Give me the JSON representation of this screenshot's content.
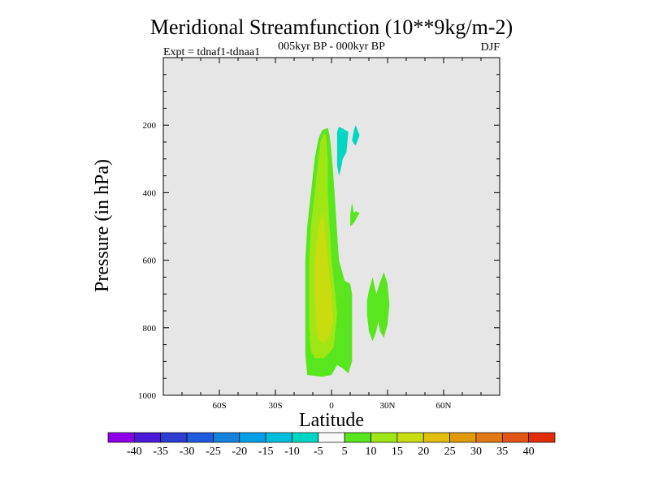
{
  "chart_data": {
    "type": "contour",
    "title": "Meridional Streamfunction (10**9kg/m-2)",
    "subtitle": "005kyr BP - 000kyr BP",
    "left_annotation": "Expt = tdnaf1-tdnaa1",
    "right_annotation": "DJF",
    "xlabel": "Latitude",
    "ylabel": "Pressure (in hPa)",
    "xlim": [
      -90,
      90
    ],
    "ylim": [
      1000,
      0
    ],
    "x_ticks": [
      {
        "value": -60,
        "label": "60S"
      },
      {
        "value": -30,
        "label": "30S"
      },
      {
        "value": 0,
        "label": "0"
      },
      {
        "value": 30,
        "label": "30N"
      },
      {
        "value": 60,
        "label": "60N"
      }
    ],
    "y_ticks": [
      {
        "value": 200,
        "label": "200"
      },
      {
        "value": 400,
        "label": "400"
      },
      {
        "value": 600,
        "label": "600"
      },
      {
        "value": 800,
        "label": "800"
      },
      {
        "value": 1000,
        "label": "1000"
      }
    ],
    "background_color": "#e6e6e6",
    "colorbar": {
      "levels": [
        "-40",
        "-35",
        "-30",
        "-25",
        "-20",
        "-15",
        "-10",
        "-5",
        "5",
        "10",
        "15",
        "20",
        "25",
        "30",
        "35",
        "40"
      ],
      "colors": [
        "#8c00e6",
        "#4b19d7",
        "#2d3cd2",
        "#1e5adc",
        "#1482dc",
        "#00a0e6",
        "#00bedc",
        "#00d7c3",
        "#fafafa",
        "#5ae61e",
        "#a0e614",
        "#c8dc0f",
        "#e1be0a",
        "#e19b0a",
        "#e17814",
        "#e15514",
        "#e12d0a"
      ]
    },
    "contours": [
      {
        "value_range": "5 to 10",
        "color": "#5ae61e",
        "points": [
          [
            -13,
            940
          ],
          [
            -14,
            880
          ],
          [
            -14,
            800
          ],
          [
            -14,
            700
          ],
          [
            -14,
            600
          ],
          [
            -13,
            500
          ],
          [
            -11,
            400
          ],
          [
            -9,
            300
          ],
          [
            -7,
            240
          ],
          [
            -5,
            215
          ],
          [
            -2,
            208
          ],
          [
            -1,
            230
          ],
          [
            0,
            280
          ],
          [
            1,
            350
          ],
          [
            2,
            430
          ],
          [
            3,
            520
          ],
          [
            4,
            600
          ],
          [
            7,
            660
          ],
          [
            10,
            670
          ],
          [
            11,
            700
          ],
          [
            11,
            900
          ],
          [
            9,
            935
          ],
          [
            6,
            920
          ],
          [
            3,
            910
          ],
          [
            0,
            940
          ],
          [
            -5,
            945
          ]
        ]
      },
      {
        "value_range": "10 to 15",
        "color": "#a0e614",
        "points": [
          [
            -11,
            870
          ],
          [
            -12,
            800
          ],
          [
            -12,
            700
          ],
          [
            -12,
            600
          ],
          [
            -11,
            500
          ],
          [
            -9,
            400
          ],
          [
            -7,
            300
          ],
          [
            -6,
            250
          ],
          [
            -4,
            225
          ],
          [
            -3,
            230
          ],
          [
            -2,
            300
          ],
          [
            -2,
            400
          ],
          [
            -1,
            500
          ],
          [
            0,
            600
          ],
          [
            2,
            700
          ],
          [
            3,
            760
          ],
          [
            1,
            860
          ],
          [
            -4,
            890
          ],
          [
            -9,
            890
          ]
        ]
      },
      {
        "value_range": "15 to 20",
        "color": "#c8dc0f",
        "points": [
          [
            -8,
            800
          ],
          [
            -9,
            700
          ],
          [
            -9,
            600
          ],
          [
            -7,
            500
          ],
          [
            -5,
            460
          ],
          [
            -4,
            480
          ],
          [
            -3,
            550
          ],
          [
            -1,
            650
          ],
          [
            0,
            700
          ],
          [
            1,
            780
          ],
          [
            -1,
            820
          ],
          [
            -4,
            850
          ],
          [
            -7,
            830
          ]
        ]
      },
      {
        "value_range": "5 to 10",
        "color": "#5ae61e",
        "points": [
          [
            10,
            465
          ],
          [
            11,
            430
          ],
          [
            12,
            460
          ],
          [
            13,
            455
          ],
          [
            15,
            460
          ],
          [
            14,
            470
          ],
          [
            12,
            490
          ],
          [
            10,
            500
          ]
        ]
      },
      {
        "value_range": "5 to 10",
        "color": "#5ae61e",
        "points": [
          [
            20,
            690
          ],
          [
            22,
            650
          ],
          [
            24,
            700
          ],
          [
            26,
            665
          ],
          [
            28,
            635
          ],
          [
            30,
            670
          ],
          [
            31,
            730
          ],
          [
            30,
            790
          ],
          [
            28,
            830
          ],
          [
            26,
            810
          ],
          [
            25,
            780
          ],
          [
            24,
            810
          ],
          [
            22,
            840
          ],
          [
            20,
            810
          ],
          [
            19,
            760
          ],
          [
            19,
            720
          ]
        ]
      },
      {
        "value_range": "5 to 10",
        "color": "#5ae61e",
        "points": [
          [
            6,
            720
          ],
          [
            7,
            770
          ],
          [
            6,
            830
          ],
          [
            4,
            850
          ],
          [
            2,
            820
          ],
          [
            3,
            770
          ]
        ]
      },
      {
        "value_range": "-10 to -5",
        "color": "#00d7c3",
        "points": [
          [
            4,
            205
          ],
          [
            6,
            210
          ],
          [
            9,
            220
          ],
          [
            8,
            280
          ],
          [
            6,
            300
          ],
          [
            5,
            330
          ],
          [
            4,
            350
          ],
          [
            3,
            320
          ],
          [
            3,
            260
          ],
          [
            3,
            220
          ]
        ]
      },
      {
        "value_range": "-10 to -5",
        "color": "#00d7c3",
        "points": [
          [
            11,
            245
          ],
          [
            12,
            215
          ],
          [
            13,
            200
          ],
          [
            15,
            230
          ],
          [
            13,
            260
          ],
          [
            12,
            255
          ]
        ]
      }
    ]
  }
}
